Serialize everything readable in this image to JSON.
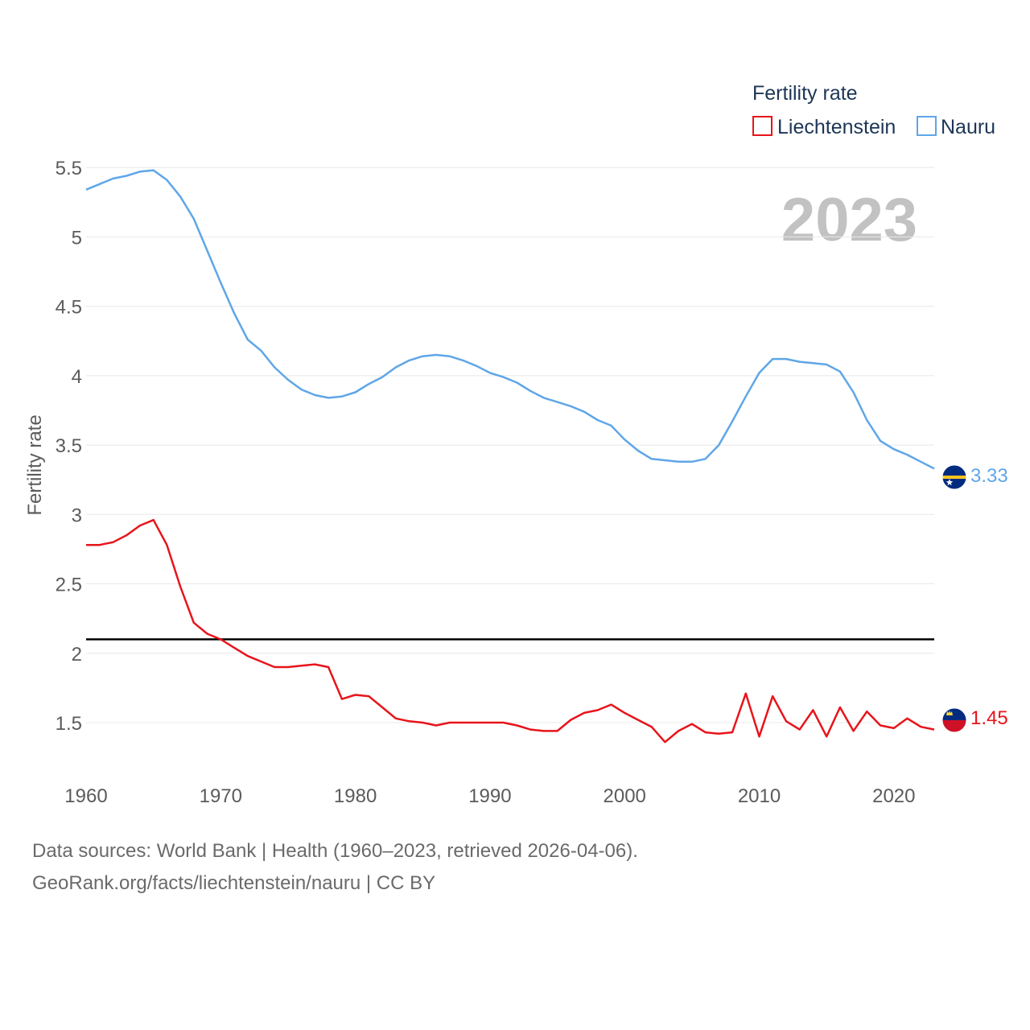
{
  "chart_data": {
    "type": "line",
    "title": "Fertility rate",
    "year_label": "2023",
    "ylabel": "Fertility rate",
    "xlabel": "",
    "xlim": [
      1960,
      2023
    ],
    "ylim": [
      1.1,
      5.75
    ],
    "yticks": [
      1.5,
      2,
      2.5,
      3,
      3.5,
      4,
      4.5,
      5,
      5.5
    ],
    "ytick_labels": [
      "1.5",
      "2",
      "2.5",
      "3",
      "3.5",
      "4",
      "4.5",
      "5",
      "5.5"
    ],
    "xticks": [
      1960,
      1970,
      1980,
      1990,
      2000,
      2010,
      2020
    ],
    "xtick_labels": [
      "1960",
      "1970",
      "1980",
      "1990",
      "2000",
      "2010",
      "2020"
    ],
    "reference_line": {
      "value": 2.1,
      "color": "#000000"
    },
    "legend_position": "top-right",
    "x": [
      1960,
      1961,
      1962,
      1963,
      1964,
      1965,
      1966,
      1967,
      1968,
      1969,
      1970,
      1971,
      1972,
      1973,
      1974,
      1975,
      1976,
      1977,
      1978,
      1979,
      1980,
      1981,
      1982,
      1983,
      1984,
      1985,
      1986,
      1987,
      1988,
      1989,
      1990,
      1991,
      1992,
      1993,
      1994,
      1995,
      1996,
      1997,
      1998,
      1999,
      2000,
      2001,
      2002,
      2003,
      2004,
      2005,
      2006,
      2007,
      2008,
      2009,
      2010,
      2011,
      2012,
      2013,
      2014,
      2015,
      2016,
      2017,
      2018,
      2019,
      2020,
      2021,
      2022,
      2023
    ],
    "series": [
      {
        "name": "Liechtenstein",
        "color": "#e8141b",
        "end_label": "1.45",
        "values": [
          2.78,
          2.78,
          2.8,
          2.85,
          2.92,
          2.96,
          2.78,
          2.48,
          2.22,
          2.14,
          2.1,
          2.04,
          1.98,
          1.94,
          1.9,
          1.9,
          1.91,
          1.92,
          1.9,
          1.67,
          1.7,
          1.69,
          1.61,
          1.53,
          1.51,
          1.5,
          1.48,
          1.5,
          1.5,
          1.5,
          1.5,
          1.5,
          1.48,
          1.45,
          1.44,
          1.44,
          1.52,
          1.57,
          1.59,
          1.63,
          1.57,
          1.52,
          1.47,
          1.36,
          1.44,
          1.49,
          1.43,
          1.42,
          1.43,
          1.71,
          1.4,
          1.69,
          1.51,
          1.45,
          1.59,
          1.4,
          1.61,
          1.44,
          1.58,
          1.48,
          1.46,
          1.53,
          1.47,
          1.45
        ]
      },
      {
        "name": "Nauru",
        "color": "#5fa6e8",
        "end_label": "3.33",
        "values": [
          5.34,
          5.38,
          5.42,
          5.44,
          5.47,
          5.48,
          5.41,
          5.29,
          5.13,
          4.9,
          4.67,
          4.45,
          4.26,
          4.18,
          4.06,
          3.97,
          3.9,
          3.86,
          3.84,
          3.85,
          3.88,
          3.94,
          3.99,
          4.06,
          4.11,
          4.14,
          4.15,
          4.14,
          4.11,
          4.07,
          4.02,
          3.99,
          3.95,
          3.89,
          3.84,
          3.81,
          3.78,
          3.74,
          3.68,
          3.64,
          3.54,
          3.46,
          3.4,
          3.39,
          3.38,
          3.38,
          3.4,
          3.5,
          3.67,
          3.85,
          4.02,
          4.12,
          4.12,
          4.1,
          4.09,
          4.08,
          4.03,
          3.88,
          3.68,
          3.53,
          3.47,
          3.43,
          3.38,
          3.33
        ]
      }
    ]
  },
  "footer": {
    "line1": "Data sources: World Bank | Health (1960–2023, retrieved 2026-04-06).",
    "line2": "GeoRank.org/facts/liechtenstein/nauru | CC BY"
  },
  "colors": {
    "grid": "#e8e8e8",
    "axis_text": "#5b5b5b",
    "legend_text": "#1d3557",
    "year_watermark": "#c2c2c2"
  },
  "icons": {
    "liechtenstein_marker": "liechtenstein-flag-icon",
    "nauru_marker": "nauru-flag-icon"
  }
}
